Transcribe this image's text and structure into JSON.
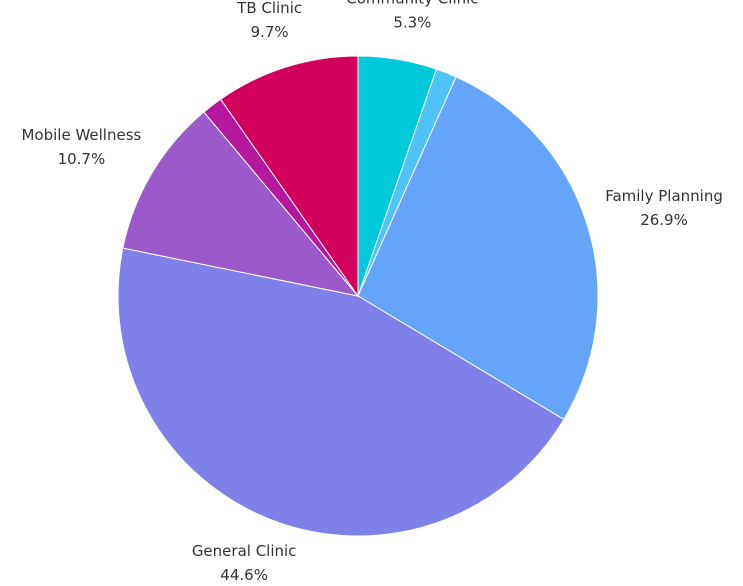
{
  "chart_data": {
    "type": "pie",
    "categories": [
      "Community Clinic",
      null,
      "Family Planning",
      "General Clinic",
      "Mobile Wellness",
      null,
      "TB Clinic"
    ],
    "values": [
      5.3,
      1.4,
      26.9,
      44.6,
      10.7,
      1.4,
      9.7
    ],
    "value_labels": [
      "5.3%",
      null,
      "26.9%",
      "44.6%",
      "10.7%",
      null,
      "9.7%"
    ],
    "colors": [
      "#00c9db",
      "#4fc3f7",
      "#64a5fa",
      "#7f80e8",
      "#9b59cc",
      "#b5179e",
      "#d1005a"
    ]
  }
}
